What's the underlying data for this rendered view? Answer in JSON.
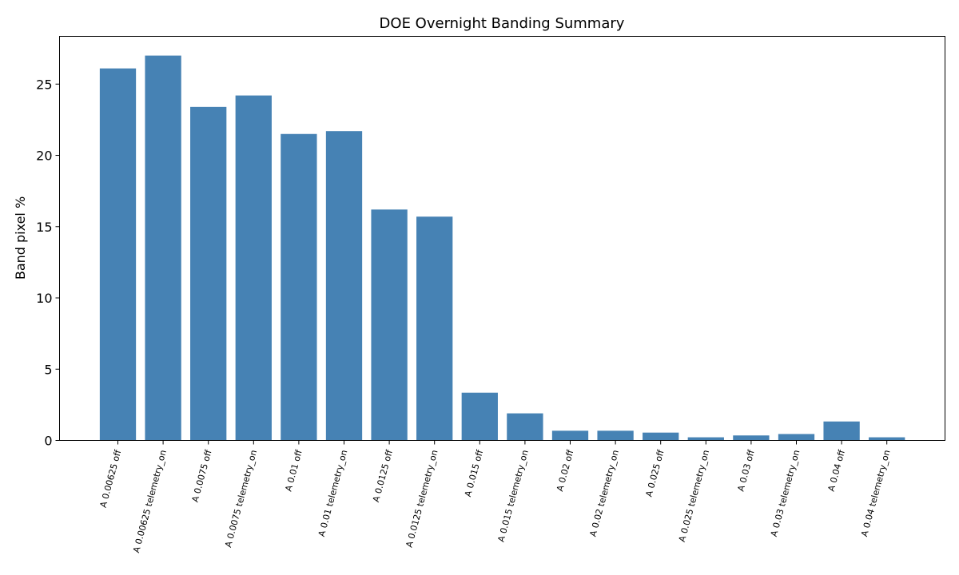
{
  "chart_data": {
    "type": "bar",
    "title": "DOE Overnight Banding Summary",
    "xlabel": "",
    "ylabel": "Band pixel %",
    "categories": [
      "A 0.00625 off",
      "A 0.00625 telemetry_on",
      "A 0.0075 off",
      "A 0.0075 telemetry_on",
      "A 0.01 off",
      "A 0.01 telemetry_on",
      "A 0.0125 off",
      "A 0.0125 telemetry_on",
      "A 0.015 off",
      "A 0.015 telemetry_on",
      "A 0.02 off",
      "A 0.02 telemetry_on",
      "A 0.025 off",
      "A 0.025 telemetry_on",
      "A 0.03 off",
      "A 0.03 telemetry_on",
      "A 0.04 off",
      "A 0.04 telemetry_on"
    ],
    "values": [
      26.1,
      27.0,
      23.4,
      24.2,
      21.5,
      21.7,
      16.2,
      15.7,
      3.35,
      1.9,
      0.68,
      0.68,
      0.55,
      0.22,
      0.35,
      0.45,
      1.33,
      0.22
    ],
    "ylim": [
      0,
      28.35
    ],
    "yticks": [
      0,
      5,
      10,
      15,
      20,
      25
    ],
    "bar_color": "#4682b4",
    "grid": false
  }
}
